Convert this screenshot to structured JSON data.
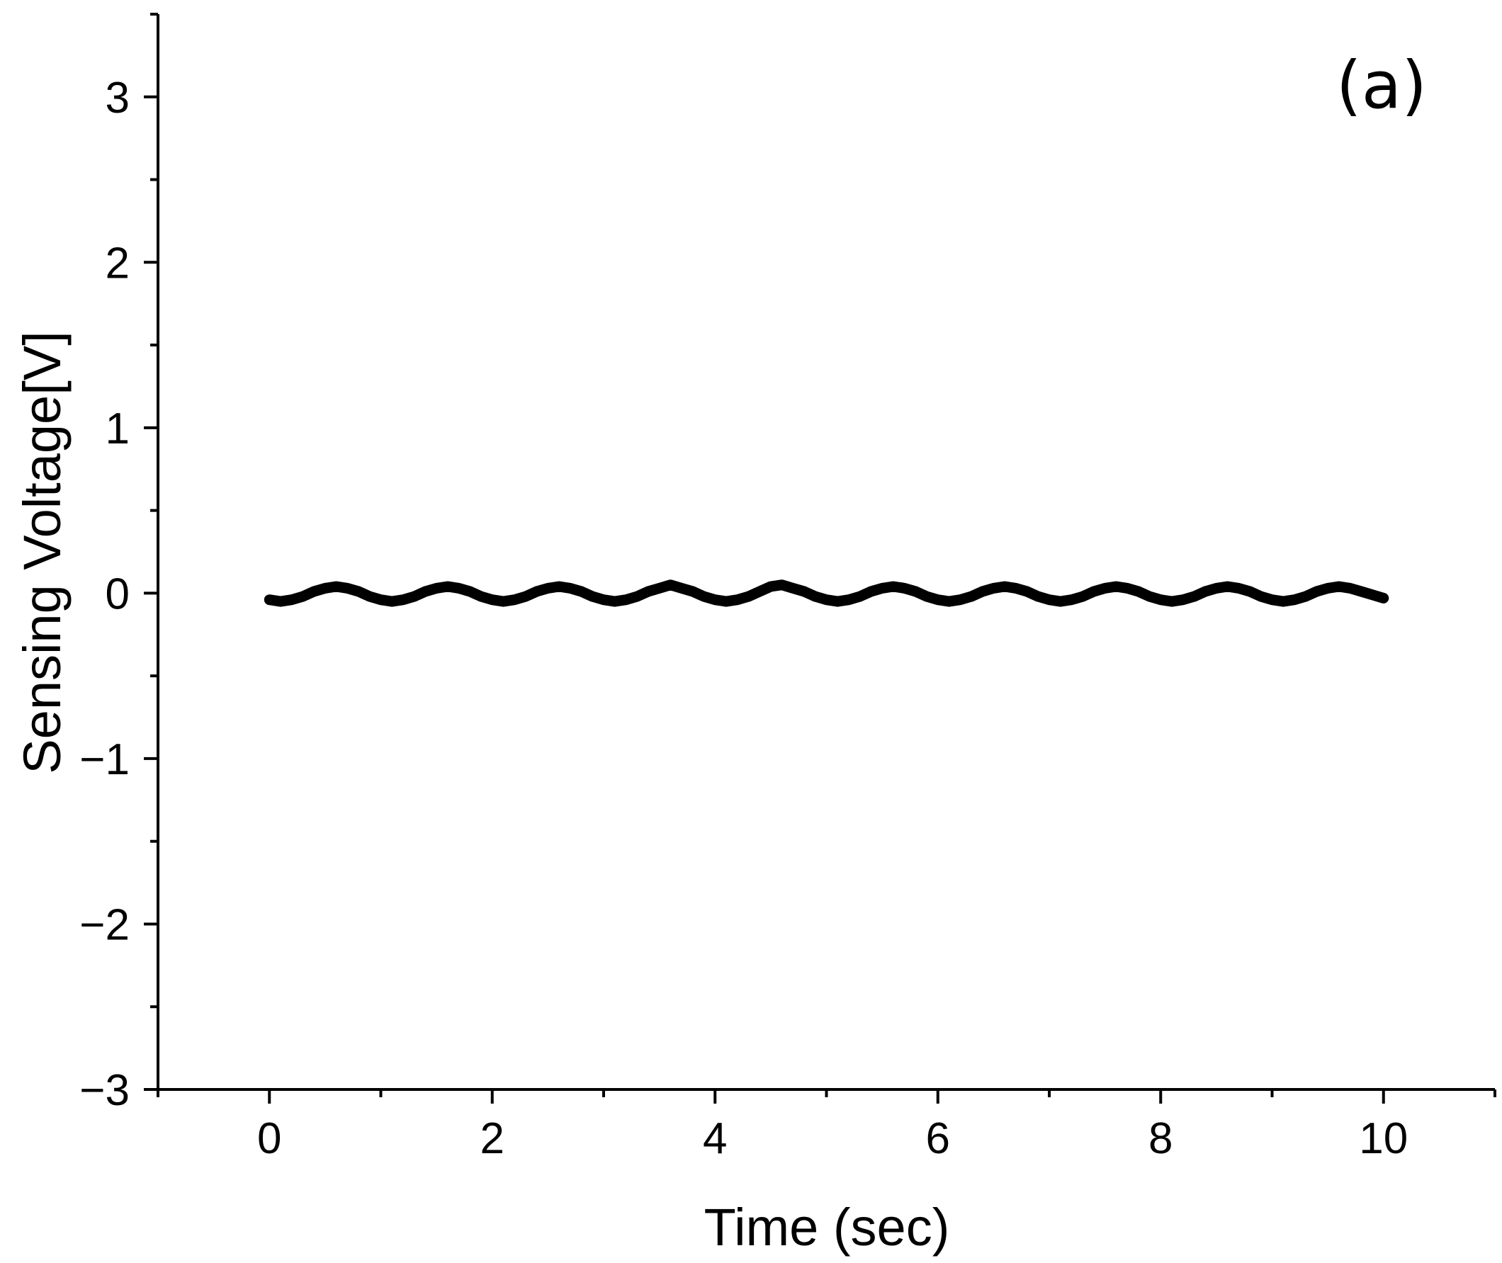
{
  "chart_data": {
    "type": "line",
    "title": "",
    "panel_label": "(a)",
    "xlabel": "Time (sec)",
    "ylabel": "Sensing Voltage[V]",
    "xlim": [
      -1,
      11
    ],
    "ylim": [
      -3,
      3.5
    ],
    "xticks": [
      0,
      2,
      4,
      6,
      8,
      10
    ],
    "xtick_labels": [
      "0",
      "2",
      "4",
      "6",
      "8",
      "10"
    ],
    "yticks": [
      -3,
      -2,
      -1,
      0,
      1,
      2,
      3
    ],
    "ytick_labels": [
      "−3",
      "−2",
      "−1",
      "0",
      "1",
      "2",
      "3"
    ],
    "grid": false,
    "legend": "none",
    "line_color": "#000000",
    "series": [
      {
        "x": [
          0.0,
          0.1,
          0.2,
          0.3,
          0.4,
          0.5,
          0.6,
          0.7,
          0.8,
          0.9,
          1.0,
          1.1,
          1.2,
          1.3,
          1.4,
          1.5,
          1.6,
          1.7,
          1.8,
          1.9,
          2.0,
          2.1,
          2.2,
          2.3,
          2.4,
          2.5,
          2.6,
          2.7,
          2.8,
          2.9,
          3.0,
          3.1,
          3.2,
          3.3,
          3.4,
          3.5,
          3.6,
          3.7,
          3.8,
          3.9,
          4.0,
          4.1,
          4.2,
          4.3,
          4.4,
          4.5,
          4.6,
          4.7,
          4.8,
          4.9,
          5.0,
          5.1,
          5.2,
          5.3,
          5.4,
          5.5,
          5.6,
          5.7,
          5.8,
          5.9,
          6.0,
          6.1,
          6.2,
          6.3,
          6.4,
          6.5,
          6.6,
          6.7,
          6.8,
          6.9,
          7.0,
          7.1,
          7.2,
          7.3,
          7.4,
          7.5,
          7.6,
          7.7,
          7.8,
          7.9,
          8.0,
          8.1,
          8.2,
          8.3,
          8.4,
          8.5,
          8.6,
          8.7,
          8.8,
          8.9,
          9.0,
          9.1,
          9.2,
          9.3,
          9.4,
          9.5,
          9.6,
          9.7,
          9.8,
          9.9,
          10.0
        ],
        "y": [
          -0.04,
          -0.05,
          -0.04,
          -0.02,
          0.01,
          0.03,
          0.04,
          0.03,
          0.01,
          -0.02,
          -0.04,
          -0.05,
          -0.04,
          -0.02,
          0.01,
          0.03,
          0.04,
          0.03,
          0.01,
          -0.02,
          -0.04,
          -0.05,
          -0.04,
          -0.02,
          0.01,
          0.03,
          0.04,
          0.03,
          0.01,
          -0.02,
          -0.04,
          -0.05,
          -0.04,
          -0.02,
          0.01,
          0.03,
          0.05,
          0.03,
          0.01,
          -0.02,
          -0.04,
          -0.05,
          -0.04,
          -0.02,
          0.01,
          0.04,
          0.05,
          0.03,
          0.01,
          -0.02,
          -0.04,
          -0.05,
          -0.04,
          -0.02,
          0.01,
          0.03,
          0.04,
          0.03,
          0.01,
          -0.02,
          -0.04,
          -0.05,
          -0.04,
          -0.02,
          0.01,
          0.03,
          0.04,
          0.03,
          0.01,
          -0.02,
          -0.04,
          -0.05,
          -0.04,
          -0.02,
          0.01,
          0.03,
          0.04,
          0.03,
          0.01,
          -0.02,
          -0.04,
          -0.05,
          -0.04,
          -0.02,
          0.01,
          0.03,
          0.04,
          0.03,
          0.01,
          -0.02,
          -0.04,
          -0.05,
          -0.04,
          -0.02,
          0.01,
          0.03,
          0.04,
          0.03,
          0.01,
          -0.01,
          -0.03
        ]
      }
    ]
  }
}
